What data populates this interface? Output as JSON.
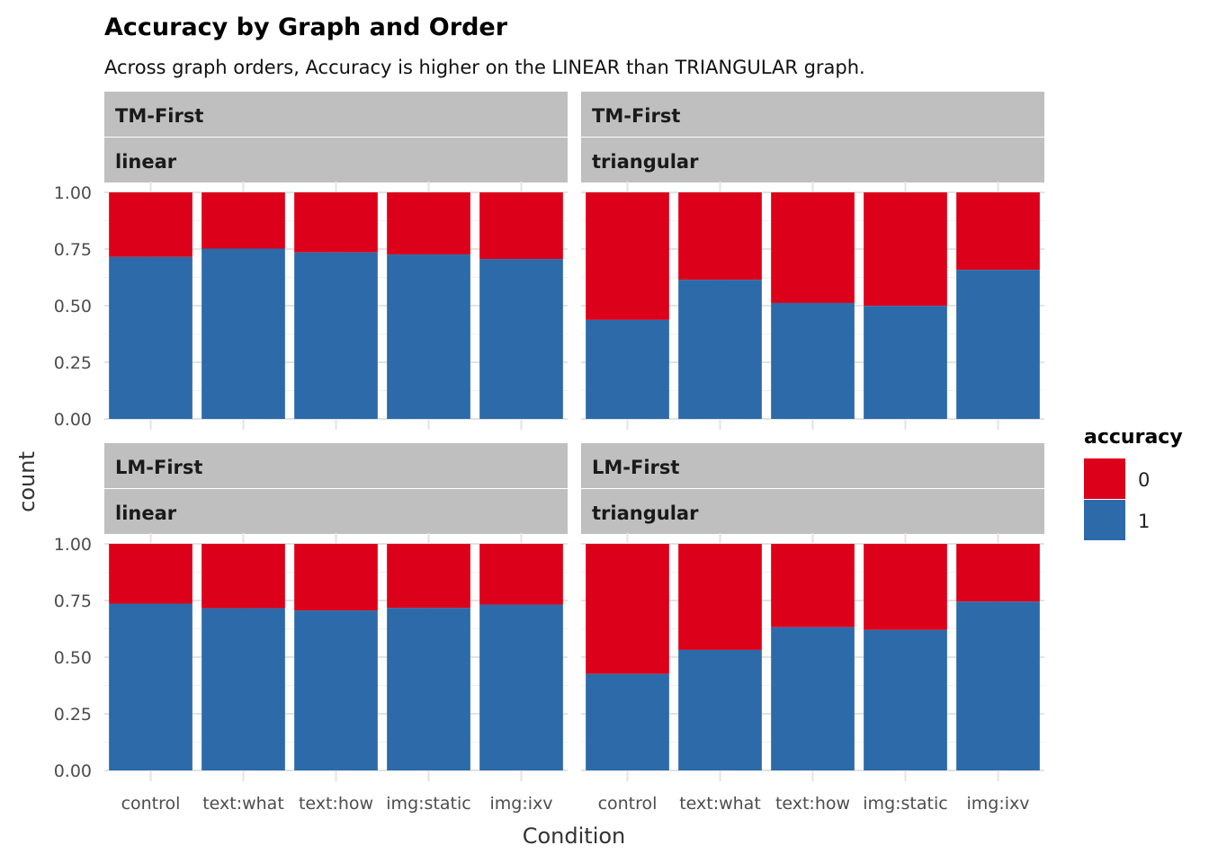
{
  "chart_data": {
    "type": "bar",
    "stacked": true,
    "title": "Accuracy by Graph and Order",
    "subtitle": "Across graph orders, Accuracy is higher on the LINEAR than TRIANGULAR graph.",
    "xlabel": "Condition",
    "ylabel": "count",
    "ylim": [
      0,
      1
    ],
    "yticks": [
      "0.00",
      "0.25",
      "0.50",
      "0.75",
      "1.00"
    ],
    "categories": [
      "control",
      "text:what",
      "text:how",
      "img:static",
      "img:ixv"
    ],
    "legend": {
      "title": "accuracy",
      "position": "right",
      "entries": [
        {
          "label": "0",
          "color": "#DC001A"
        },
        {
          "label": "1",
          "color": "#2C6AA9"
        }
      ]
    },
    "grid": true,
    "panels": [
      {
        "order": "TM-First",
        "graph": "linear",
        "accuracy_1": [
          0.715,
          0.752,
          0.735,
          0.726,
          0.706
        ]
      },
      {
        "order": "TM-First",
        "graph": "triangular",
        "accuracy_1": [
          0.437,
          0.614,
          0.512,
          0.499,
          0.658
        ]
      },
      {
        "order": "LM-First",
        "graph": "linear",
        "accuracy_1": [
          0.736,
          0.716,
          0.706,
          0.717,
          0.732
        ]
      },
      {
        "order": "LM-First",
        "graph": "triangular",
        "accuracy_1": [
          0.426,
          0.532,
          0.632,
          0.62,
          0.745
        ]
      }
    ]
  }
}
